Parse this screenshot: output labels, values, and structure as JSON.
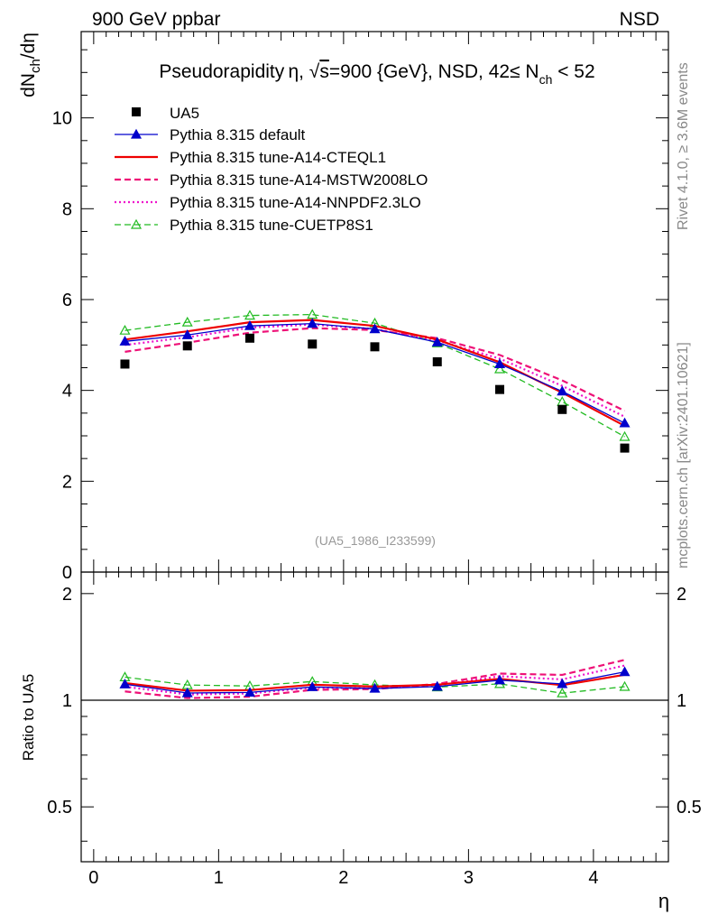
{
  "header": {
    "left": "900 GeV ppbar",
    "right": "NSD"
  },
  "side_labels": {
    "top": "Rivet 4.1.0, ≥ 3.6M events",
    "bottom": "mcplots.cern.ch [arXiv:2401.10621]"
  },
  "chart_data": {
    "type": "line",
    "title": "Pseudorapidity η, √s=900 {GeV}, NSD, 42≤ N_ch < 52",
    "title_parts": {
      "pre": "Pseudorapidity η, √",
      "s_part": "s",
      "mid": "=900 {GeV}, NSD, 42≤ N",
      "sub": "ch",
      "post": " < 52"
    },
    "xlabel": "η",
    "ylabel": {
      "main": "dN",
      "sub": "ch",
      "rest": "/dη"
    },
    "ratio_ylabel": "Ratio to UA5",
    "reference_tag": "(UA5_1986_I233599)",
    "xlim": [
      -0.1,
      4.6
    ],
    "ylim": [
      0,
      11.9
    ],
    "ratio_ylim": [
      0.35,
      2.3
    ],
    "xticks": [
      0,
      1,
      2,
      3,
      4
    ],
    "yticks": [
      0,
      2,
      4,
      6,
      8,
      10
    ],
    "ratio_yticks": [
      0.5,
      1,
      2
    ],
    "x": [
      0.25,
      0.75,
      1.25,
      1.75,
      2.25,
      2.75,
      3.25,
      3.75,
      4.25
    ],
    "data": {
      "name": "UA5",
      "values": [
        4.58,
        4.98,
        5.15,
        5.02,
        4.96,
        4.63,
        4.02,
        3.58,
        2.73
      ]
    },
    "series": [
      {
        "name": "Pythia 8.315 default",
        "color": "#0000cc",
        "style": "solid",
        "marker": "triangle-filled",
        "values": [
          5.08,
          5.22,
          5.42,
          5.47,
          5.35,
          5.06,
          4.58,
          3.98,
          3.28
        ],
        "ratio": [
          1.11,
          1.048,
          1.052,
          1.09,
          1.079,
          1.093,
          1.139,
          1.112,
          1.202
        ]
      },
      {
        "name": "Pythia 8.315 tune-A14-CTEQL1",
        "color": "#ee0000",
        "style": "solid",
        "marker": "none",
        "values": [
          5.12,
          5.3,
          5.5,
          5.55,
          5.42,
          5.12,
          4.62,
          3.95,
          3.22
        ],
        "ratio": [
          1.118,
          1.064,
          1.068,
          1.106,
          1.093,
          1.106,
          1.149,
          1.103,
          1.18
        ]
      },
      {
        "name": "Pythia 8.315 tune-A14-MSTW2008LO",
        "color": "#ee1177",
        "style": "dashed",
        "marker": "none",
        "values": [
          4.85,
          5.05,
          5.27,
          5.37,
          5.33,
          5.15,
          4.78,
          4.22,
          3.55
        ],
        "ratio": [
          1.059,
          1.014,
          1.023,
          1.07,
          1.075,
          1.112,
          1.189,
          1.179,
          1.3
        ]
      },
      {
        "name": "Pythia 8.315 tune-A14-NNPDF2.3LO",
        "color": "#ee11cc",
        "style": "dotted",
        "marker": "none",
        "values": [
          5.0,
          5.17,
          5.38,
          5.45,
          5.35,
          5.1,
          4.7,
          4.1,
          3.42
        ],
        "ratio": [
          1.092,
          1.038,
          1.045,
          1.086,
          1.079,
          1.101,
          1.169,
          1.145,
          1.253
        ]
      },
      {
        "name": "Pythia 8.315 tune-CUETP8S1",
        "color": "#22bb22",
        "style": "dashed",
        "marker": "triangle-open",
        "values": [
          5.32,
          5.5,
          5.65,
          5.67,
          5.48,
          5.04,
          4.47,
          3.75,
          2.98
        ],
        "ratio": [
          1.162,
          1.104,
          1.097,
          1.129,
          1.105,
          1.089,
          1.112,
          1.047,
          1.092
        ]
      }
    ]
  }
}
